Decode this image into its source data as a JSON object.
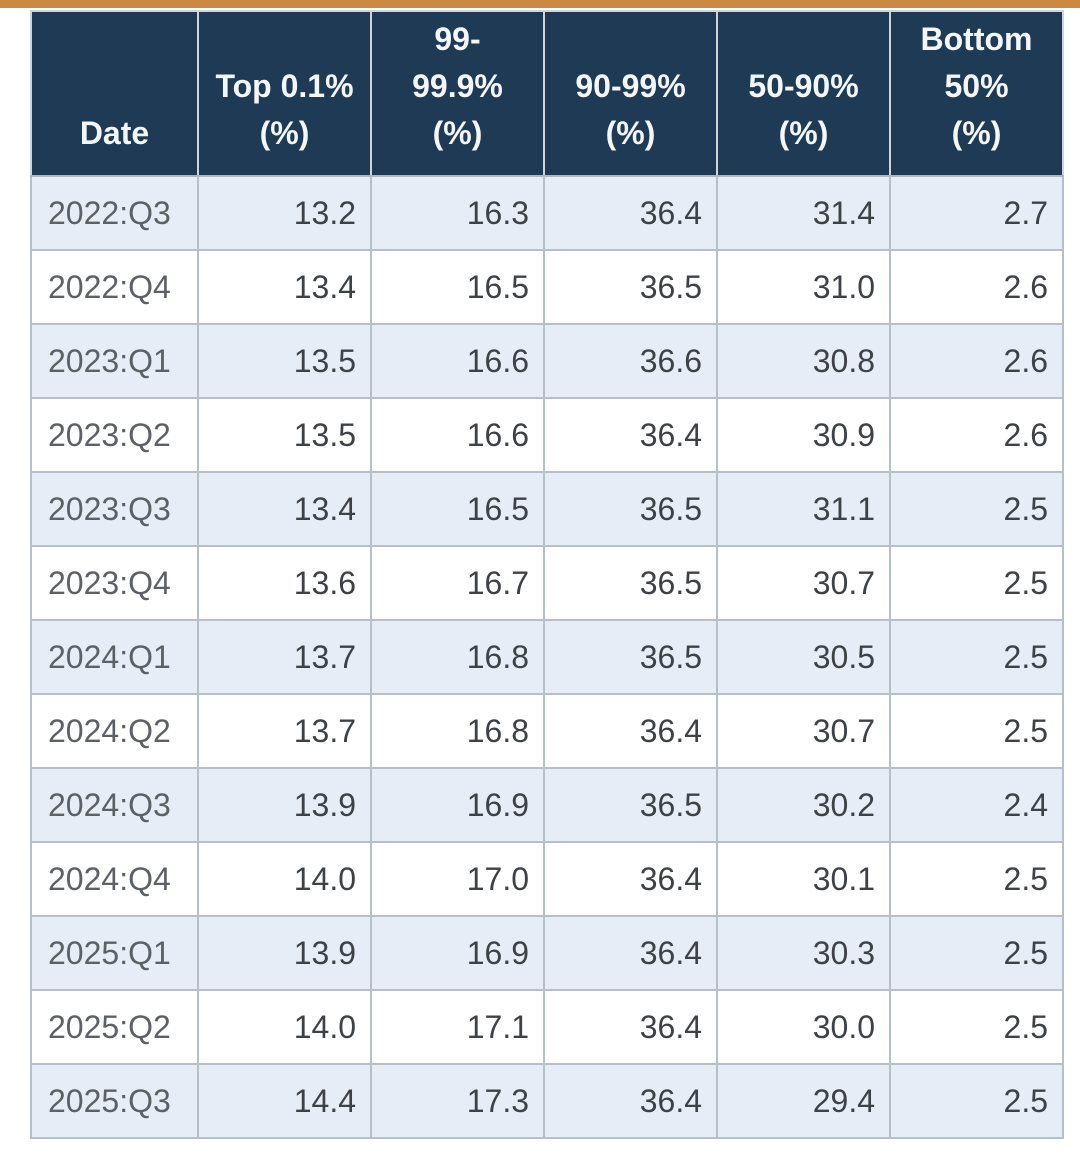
{
  "page": {
    "top_accent_color": "#cc8a41",
    "background": "#ffffff"
  },
  "table": {
    "header": [
      {
        "key": "date",
        "lines": [
          "Date"
        ]
      },
      {
        "key": "top-0-1",
        "lines": [
          "Top 0.1%",
          "(%)"
        ]
      },
      {
        "key": "99-99-9",
        "lines": [
          "99-",
          "99.9%",
          "(%)"
        ]
      },
      {
        "key": "90-99",
        "lines": [
          "90-99%",
          "(%)"
        ]
      },
      {
        "key": "50-90",
        "lines": [
          "50-90%",
          "(%)"
        ]
      },
      {
        "key": "bottom-50",
        "lines": [
          "Bottom",
          "50%",
          "(%)"
        ]
      }
    ],
    "colors": {
      "header_bg": "#1e3a55",
      "header_text": "#f4f7fa",
      "row_alt_bg": "#e6edf7",
      "row_bg": "#ffffff",
      "date_text": "#5d6166",
      "value_text": "#3e4247",
      "border": "#b6c0c9",
      "accent_top": "#cc8a41"
    }
  },
  "chart_data": {
    "type": "table",
    "title": "",
    "columns": [
      "Date",
      "Top 0.1% (%)",
      "99-99.9% (%)",
      "90-99% (%)",
      "50-90% (%)",
      "Bottom 50% (%)"
    ],
    "rows": [
      [
        "2022:Q3",
        "13.2",
        "16.3",
        "36.4",
        "31.4",
        "2.7"
      ],
      [
        "2022:Q4",
        "13.4",
        "16.5",
        "36.5",
        "31.0",
        "2.6"
      ],
      [
        "2023:Q1",
        "13.5",
        "16.6",
        "36.6",
        "30.8",
        "2.6"
      ],
      [
        "2023:Q2",
        "13.5",
        "16.6",
        "36.4",
        "30.9",
        "2.6"
      ],
      [
        "2023:Q3",
        "13.4",
        "16.5",
        "36.5",
        "31.1",
        "2.5"
      ],
      [
        "2023:Q4",
        "13.6",
        "16.7",
        "36.5",
        "30.7",
        "2.5"
      ],
      [
        "2024:Q1",
        "13.7",
        "16.8",
        "36.5",
        "30.5",
        "2.5"
      ],
      [
        "2024:Q2",
        "13.7",
        "16.8",
        "36.4",
        "30.7",
        "2.5"
      ],
      [
        "2024:Q3",
        "13.9",
        "16.9",
        "36.5",
        "30.2",
        "2.4"
      ],
      [
        "2024:Q4",
        "14.0",
        "17.0",
        "36.4",
        "30.1",
        "2.5"
      ],
      [
        "2025:Q1",
        "13.9",
        "16.9",
        "36.4",
        "30.3",
        "2.5"
      ],
      [
        "2025:Q2",
        "14.0",
        "17.1",
        "36.4",
        "30.0",
        "2.5"
      ],
      [
        "2025:Q3",
        "14.4",
        "17.3",
        "36.4",
        "29.4",
        "2.5"
      ]
    ]
  }
}
